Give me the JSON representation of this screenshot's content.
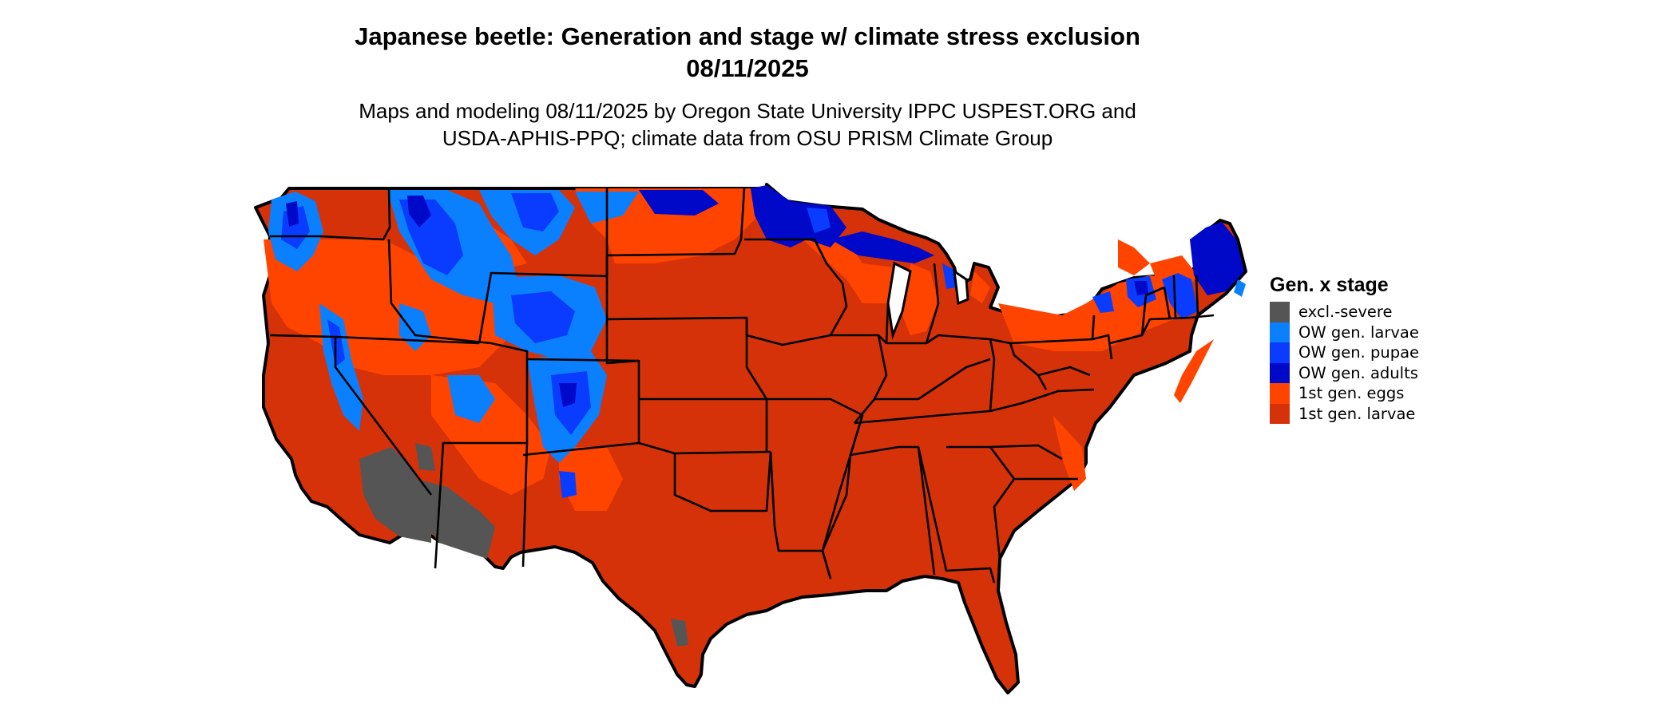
{
  "title_line1": "Japanese beetle: Generation and stage w/ climate stress exclusion",
  "title_line2": "08/11/2025",
  "subtitle_line1": "Maps and modeling 08/11/2025 by Oregon State University IPPC USPEST.ORG and",
  "subtitle_line2": "USDA-APHIS-PPQ; climate data from OSU PRISM Climate Group",
  "legend": {
    "title": "Gen. x stage",
    "items": [
      {
        "label": "excl.-severe",
        "color": "#555555"
      },
      {
        "label": "OW gen. larvae",
        "color": "#0a80ff"
      },
      {
        "label": "OW gen. pupae",
        "color": "#0a3cff"
      },
      {
        "label": "OW gen. adults",
        "color": "#0009c7"
      },
      {
        "label": "1st gen. eggs",
        "color": "#ff4400"
      },
      {
        "label": "1st gen. larvae",
        "color": "#d5320a"
      }
    ]
  }
}
